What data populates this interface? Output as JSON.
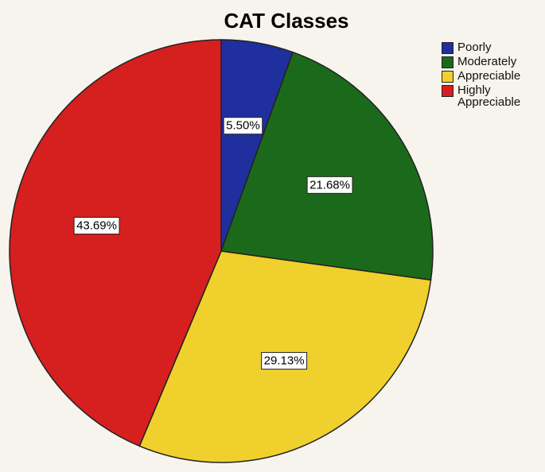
{
  "chart_data": {
    "type": "pie",
    "title": "CAT Classes",
    "categories": [
      "Poorly",
      "Moderately",
      "Appreciable",
      "Highly Appreciable"
    ],
    "values": [
      5.5,
      21.68,
      29.13,
      43.69
    ],
    "value_labels": [
      "5.50%",
      "21.68%",
      "29.13%",
      "43.69%"
    ],
    "colors": [
      "#1f2f9e",
      "#1b6a1b",
      "#f0d02c",
      "#d61f1f"
    ],
    "legend": "upper right"
  }
}
